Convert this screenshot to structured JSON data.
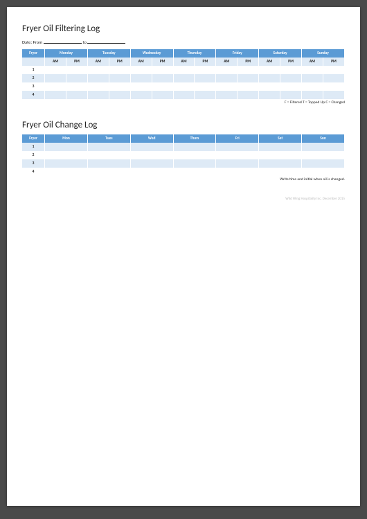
{
  "filtering": {
    "title": "Fryer Oil Filtering Log",
    "date_prefix": "Date: From",
    "date_mid": "to",
    "header": {
      "fryer": "Fryer",
      "days": [
        "Monday",
        "Tuesday",
        "Wednesday",
        "Thursday",
        "Friday",
        "Saturday",
        "Sunday"
      ],
      "am": "AM",
      "pm": "PM"
    },
    "rows": [
      "1",
      "2",
      "3",
      "4"
    ],
    "legend": "F = Filtered T = Topped Up  C = Changed",
    "colors": {
      "header_bg": "#5b9bd5",
      "header_fg": "#ffffff",
      "band_bg": "#deeaf6"
    }
  },
  "change": {
    "title": "Fryer Oil Change Log",
    "header": {
      "fryer": "Fryer",
      "days": [
        "Mon",
        "Tues",
        "Wed",
        "Thurs",
        "Fri",
        "Sat",
        "Sun"
      ]
    },
    "rows": [
      "1",
      "2",
      "3",
      "4"
    ],
    "note": "Write time and initial when oil is changed."
  },
  "footer": "Wild Wing Hospitality Inc. December 2015"
}
